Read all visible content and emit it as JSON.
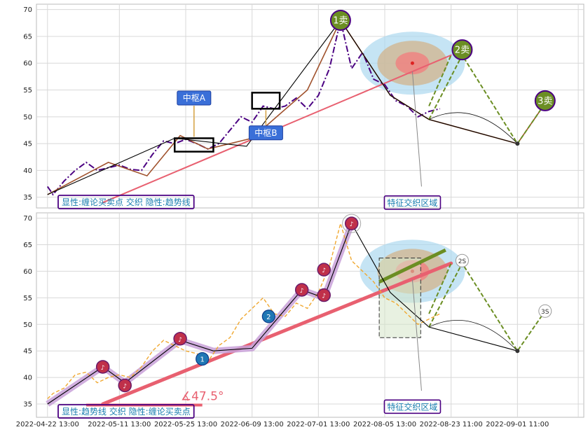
{
  "chart_data": [
    {
      "type": "line",
      "panel": "top",
      "ylim": [
        33,
        71
      ],
      "yticks": [
        35,
        40,
        45,
        50,
        55,
        60,
        65,
        70
      ],
      "grid": true,
      "price_series": {
        "x": [
          0,
          1,
          3,
          5,
          7,
          9,
          11,
          13,
          15,
          17,
          19,
          21,
          23,
          25,
          27,
          29,
          31,
          33,
          35,
          37,
          39,
          41,
          43,
          45,
          47,
          49,
          51,
          53,
          55,
          57,
          59,
          61,
          63,
          65,
          67,
          69,
          71
        ],
        "values": [
          37.0,
          35.5,
          38.0,
          40.0,
          41.5,
          40.0,
          40.5,
          41.0,
          40.2,
          40.0,
          43.0,
          45.5,
          45.0,
          45.8,
          45.0,
          44.0,
          45.0,
          47.5,
          50.0,
          49.0,
          52.0,
          51.5,
          52.0,
          53.5,
          51.5,
          54.0,
          59.0,
          68.0,
          59.0,
          62.0,
          57.0,
          56.0,
          53.0,
          52.0,
          50.0,
          51.0,
          51.5
        ]
      },
      "stroke": {
        "x": [
          0,
          11,
          18,
          24,
          29,
          37,
          47,
          53,
          62,
          69,
          85,
          89
        ],
        "values": [
          35.5,
          41.5,
          39.0,
          46.5,
          44.0,
          46.0,
          55.0,
          68.0,
          54.0,
          49.5,
          45.0,
          51.0
        ]
      },
      "segment": {
        "x": [
          0,
          23,
          36,
          53,
          62,
          69,
          85
        ],
        "values": [
          35.5,
          46.0,
          44.5,
          68.0,
          54.0,
          49.5,
          45.0
        ]
      },
      "trendline": {
        "x": [
          10,
          73
        ],
        "values": [
          34.0,
          61.5
        ]
      },
      "centers": [
        {
          "label": "中枢A",
          "x0": 23,
          "x1": 30,
          "y0": 43.5,
          "y1": 46.0,
          "arrow_x": 26.5,
          "box_x": 26.5,
          "box_y": 53.5
        },
        {
          "label": "中枢B",
          "x0": 37,
          "x1": 42,
          "y0": 51.5,
          "y1": 54.5,
          "arrow_x": 39.5,
          "box_x": 39.5,
          "box_y": 47.0
        }
      ],
      "signals": [
        {
          "label": "1卖",
          "x": 53,
          "y": 68.0
        },
        {
          "label": "2卖",
          "x": 75,
          "y": 62.5
        },
        {
          "label": "3卖",
          "x": 90,
          "y": 53.0
        }
      ],
      "projection": {
        "center_x": 66,
        "center_y": 60,
        "label": "特征交织区域",
        "label_x": 66,
        "label_y": 34.0
      },
      "caption": "显性:缠论买卖点 交织 隐性:趋势线"
    },
    {
      "type": "line",
      "panel": "bottom",
      "ylim": [
        32.5,
        71
      ],
      "yticks": [
        35,
        40,
        45,
        50,
        55,
        60,
        65,
        70
      ],
      "grid": true,
      "price_series": {
        "x": [
          0,
          1,
          3,
          5,
          7,
          9,
          11,
          13,
          15,
          17,
          19,
          21,
          23,
          25,
          27,
          29,
          31,
          33,
          35,
          37,
          39,
          41,
          43,
          45,
          47,
          49,
          51,
          53,
          55,
          57,
          59,
          61,
          63,
          65,
          67,
          69,
          71
        ],
        "values": [
          36.0,
          37.0,
          38.0,
          40.5,
          41.0,
          39.0,
          40.0,
          40.5,
          40.0,
          42.0,
          45.0,
          47.0,
          46.0,
          45.0,
          44.5,
          43.0,
          46.0,
          47.5,
          51.0,
          53.0,
          55.0,
          52.0,
          51.5,
          54.0,
          53.0,
          56.0,
          61.0,
          69.0,
          62.0,
          60.0,
          58.0,
          55.0,
          54.0,
          52.0,
          50.0,
          51.0,
          52.0
        ]
      },
      "stroke": {
        "x": [
          0,
          10,
          14,
          24,
          30,
          37,
          46,
          50,
          55
        ],
        "values": [
          35.0,
          42.0,
          39.0,
          47.0,
          45.0,
          45.5,
          56.5,
          55.0,
          69.0
        ]
      },
      "segment": {
        "x": [
          0,
          10,
          14,
          24,
          30,
          37,
          46,
          50,
          55,
          62,
          69,
          85
        ],
        "values": [
          35.0,
          42.0,
          39.0,
          47.0,
          45.0,
          45.5,
          56.5,
          55.0,
          69.0,
          56.0,
          49.5,
          45.0
        ]
      },
      "trendline": {
        "x": [
          10,
          73
        ],
        "values": [
          35.0,
          61.5
        ]
      },
      "angle_label": "∡47.5°",
      "signals": [
        {
          "label": "1",
          "x": 28,
          "y": 43.5,
          "kind": "buy"
        },
        {
          "label": "2",
          "x": 40,
          "y": 51.5,
          "kind": "buy"
        },
        {
          "label": "2S",
          "x": 75,
          "y": 62.0,
          "kind": "sell-hollow"
        },
        {
          "label": "3S",
          "x": 90,
          "y": 52.5,
          "kind": "sell-hollow"
        }
      ],
      "projection": {
        "center_x": 66,
        "center_y": 60,
        "label": "特征交织区域",
        "label_x": 66,
        "label_y": 34.5
      },
      "caption": "显性:趋势线 交织 隐性:缠论买卖点"
    }
  ],
  "xaxis": {
    "range": [
      -2,
      97
    ],
    "tick_positions": [
      0,
      13,
      25,
      37,
      49,
      61,
      73,
      85,
      96
    ],
    "tick_labels": [
      "2022-04-22 13:00",
      "2022-05-11 13:00",
      "2022-05-25 13:00",
      "2022-06-09 13:00",
      "2022-07-01 13:00",
      "2022-08-05 13:00",
      "2022-08-23 11:00",
      "2022-09-01 11:00",
      ""
    ]
  },
  "colors": {
    "price_top": "#4b0082",
    "price_bottom": "#f0a830",
    "segment": "#000000",
    "stroke": "#a0522d",
    "trendline": "#e86070",
    "signal_sell": "#6b8e23",
    "signal_buy": "#1f77b4",
    "projection_outer": "#add8f0",
    "projection_mid": "#d2b48c",
    "projection_inner": "#f08080",
    "label_box": "#4b0082",
    "label_text": "#1a7fb0",
    "center_box": "#3a6fd8"
  }
}
